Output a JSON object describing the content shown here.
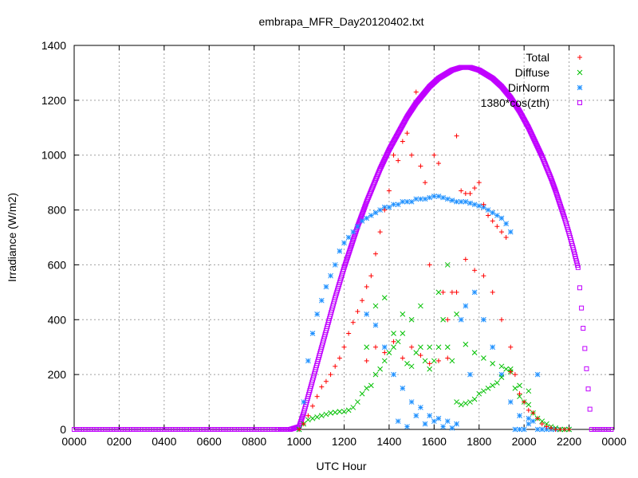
{
  "chart_data": {
    "type": "scatter",
    "title": "embrapa_MFR_Day20120402.txt",
    "xlabel": "UTC Hour",
    "ylabel": "Irradiance (W/m2)",
    "xlim": [
      0,
      2400
    ],
    "ylim": [
      0,
      1400
    ],
    "x_ticks": [
      "0000",
      "0200",
      "0400",
      "0600",
      "0800",
      "1000",
      "1200",
      "1400",
      "1600",
      "1800",
      "2000",
      "2200",
      "0000"
    ],
    "y_ticks": [
      "0",
      "200",
      "400",
      "600",
      "800",
      "1000",
      "1200",
      "1400"
    ],
    "grid": true,
    "legend_position": "top-right",
    "series": [
      {
        "name": "Total",
        "marker": "+",
        "color": "#ff0000",
        "x": [
          1000,
          1020,
          1040,
          1060,
          1080,
          1100,
          1120,
          1140,
          1160,
          1180,
          1200,
          1220,
          1240,
          1260,
          1280,
          1300,
          1320,
          1340,
          1360,
          1380,
          1400,
          1420,
          1440,
          1460,
          1480,
          1500,
          1520,
          1540,
          1560,
          1580,
          1600,
          1620,
          1640,
          1660,
          1680,
          1700,
          1720,
          1740,
          1760,
          1780,
          1800,
          1820,
          1840,
          1860,
          1880,
          1900,
          1920,
          1940,
          1960,
          1980,
          2000,
          2020,
          2040,
          2060,
          2080,
          2100,
          2120,
          2140,
          2160,
          2180,
          2200
        ],
        "y": [
          0,
          20,
          50,
          85,
          120,
          155,
          175,
          200,
          230,
          260,
          300,
          350,
          390,
          430,
          470,
          520,
          560,
          640,
          720,
          800,
          870,
          1000,
          980,
          1050,
          1080,
          1000,
          1230,
          960,
          900,
          600,
          1000,
          970,
          500,
          400,
          500,
          1070,
          870,
          860,
          860,
          880,
          900,
          820,
          780,
          760,
          740,
          720,
          700,
          210,
          200,
          130,
          100,
          70,
          60,
          40,
          20,
          10,
          5,
          0,
          0,
          0,
          0
        ],
        "extra_x": [
          1300,
          1340,
          1380,
          1420,
          1460,
          1500,
          1540,
          1580,
          1620,
          1660,
          1700,
          1740,
          1780,
          1820,
          1860,
          1900,
          1940
        ],
        "extra_y": [
          250,
          300,
          280,
          320,
          260,
          300,
          270,
          240,
          250,
          260,
          500,
          620,
          580,
          560,
          500,
          400,
          300
        ]
      },
      {
        "name": "Diffuse",
        "marker": "x",
        "color": "#00c000",
        "x": [
          1000,
          1020,
          1040,
          1060,
          1080,
          1100,
          1120,
          1140,
          1160,
          1180,
          1200,
          1220,
          1240,
          1260,
          1280,
          1300,
          1320,
          1340,
          1360,
          1380,
          1400,
          1420,
          1440,
          1460,
          1480,
          1500,
          1520,
          1540,
          1560,
          1580,
          1600,
          1620,
          1640,
          1660,
          1680,
          1700,
          1720,
          1740,
          1760,
          1780,
          1800,
          1820,
          1840,
          1860,
          1880,
          1900,
          1920,
          1940,
          1960,
          1980,
          2000,
          2020,
          2040,
          2060,
          2080,
          2100,
          2120,
          2140,
          2160,
          2180,
          2200
        ],
        "y": [
          0,
          20,
          35,
          40,
          45,
          50,
          55,
          60,
          62,
          65,
          65,
          70,
          80,
          100,
          130,
          150,
          160,
          200,
          220,
          250,
          280,
          300,
          320,
          350,
          240,
          230,
          280,
          300,
          250,
          220,
          250,
          300,
          400,
          300,
          250,
          100,
          90,
          95,
          100,
          110,
          130,
          140,
          150,
          160,
          170,
          190,
          220,
          210,
          150,
          120,
          100,
          90,
          60,
          40,
          30,
          20,
          10,
          5,
          0,
          0,
          0
        ],
        "extra_x": [
          1300,
          1340,
          1380,
          1420,
          1460,
          1500,
          1540,
          1580,
          1620,
          1660,
          1700,
          1740,
          1780,
          1820,
          1860,
          1900,
          1940,
          1980,
          2020
        ],
        "extra_y": [
          300,
          450,
          480,
          350,
          420,
          400,
          450,
          300,
          500,
          600,
          420,
          310,
          280,
          260,
          240,
          230,
          220,
          160,
          140
        ]
      },
      {
        "name": "DirNorm",
        "marker": "*",
        "color": "#1e90ff",
        "x": [
          1000,
          1020,
          1040,
          1060,
          1080,
          1100,
          1120,
          1140,
          1160,
          1180,
          1200,
          1220,
          1240,
          1260,
          1280,
          1300,
          1320,
          1340,
          1360,
          1380,
          1400,
          1420,
          1440,
          1460,
          1480,
          1500,
          1520,
          1540,
          1560,
          1580,
          1600,
          1620,
          1640,
          1660,
          1680,
          1700,
          1720,
          1740,
          1760,
          1780,
          1800,
          1820,
          1840,
          1860,
          1880,
          1900,
          1920,
          1940,
          1960,
          1980,
          2000,
          2020,
          2040,
          2060,
          2080,
          2100,
          2120,
          2140,
          2160,
          2180,
          2200
        ],
        "y": [
          0,
          100,
          250,
          350,
          420,
          470,
          520,
          560,
          600,
          650,
          680,
          700,
          720,
          740,
          760,
          770,
          780,
          790,
          800,
          810,
          810,
          820,
          820,
          830,
          830,
          830,
          840,
          840,
          840,
          845,
          850,
          850,
          845,
          840,
          835,
          830,
          830,
          830,
          825,
          820,
          815,
          810,
          800,
          790,
          780,
          770,
          750,
          720,
          0,
          0,
          0,
          20,
          30,
          0,
          0,
          0,
          0,
          0,
          0,
          0,
          0
        ],
        "extra_x": [
          1300,
          1340,
          1380,
          1420,
          1460,
          1500,
          1540,
          1580,
          1620,
          1660,
          1700,
          1740,
          1780,
          1820,
          1860,
          1900,
          1940,
          1980,
          2020,
          2060,
          1440,
          1480,
          1520,
          1560,
          1600,
          1640,
          1680,
          1720,
          1760
        ],
        "extra_y": [
          420,
          380,
          300,
          200,
          150,
          100,
          80,
          50,
          40,
          30,
          20,
          450,
          500,
          400,
          300,
          200,
          100,
          50,
          40,
          200,
          30,
          10,
          50,
          20,
          30,
          10,
          5,
          400,
          200
        ]
      },
      {
        "name": "1380*cos(zth)",
        "marker": "square",
        "color": "#c000ff",
        "x": [
          0,
          100,
          200,
          300,
          400,
          500,
          600,
          700,
          800,
          900,
          960,
          1000,
          1020,
          1040,
          1060,
          1080,
          1100,
          1120,
          1140,
          1160,
          1180,
          1200,
          1220,
          1240,
          1260,
          1280,
          1300,
          1320,
          1340,
          1360,
          1380,
          1400,
          1420,
          1440,
          1460,
          1480,
          1500,
          1520,
          1540,
          1560,
          1580,
          1600,
          1620,
          1640,
          1660,
          1680,
          1700,
          1720,
          1740,
          1760,
          1780,
          1800,
          1820,
          1840,
          1860,
          1880,
          1900,
          1920,
          1940,
          1960,
          1980,
          2000,
          2020,
          2040,
          2060,
          2080,
          2100,
          2120,
          2140,
          2160,
          2180,
          2200,
          2220,
          2240,
          2300,
          2400
        ],
        "y": [
          0,
          0,
          0,
          0,
          0,
          0,
          0,
          0,
          0,
          0,
          0,
          10,
          60,
          120,
          180,
          240,
          300,
          360,
          420,
          480,
          535,
          590,
          640,
          690,
          740,
          785,
          830,
          870,
          910,
          950,
          985,
          1020,
          1050,
          1080,
          1110,
          1140,
          1165,
          1190,
          1210,
          1230,
          1250,
          1265,
          1280,
          1290,
          1300,
          1310,
          1315,
          1320,
          1320,
          1320,
          1315,
          1310,
          1300,
          1290,
          1280,
          1265,
          1250,
          1230,
          1210,
          1185,
          1160,
          1130,
          1100,
          1065,
          1030,
          995,
          955,
          915,
          870,
          820,
          770,
          715,
          655,
          590,
          0,
          0
        ]
      }
    ]
  }
}
